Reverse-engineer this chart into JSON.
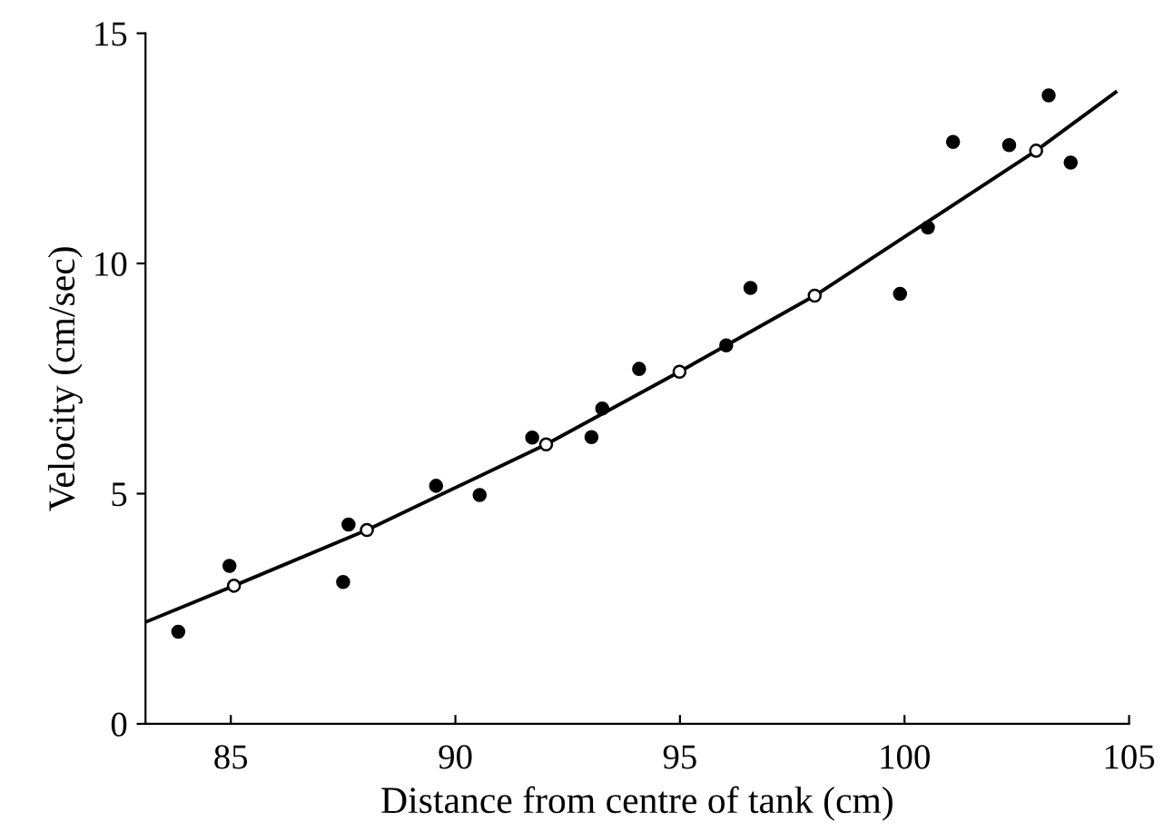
{
  "chart_data": {
    "type": "scatter",
    "xlabel": "Distance from centre of tank (cm)",
    "ylabel": "Velocity (cm/sec)",
    "xlim": [
      83.1,
      105
    ],
    "ylim": [
      0,
      15
    ],
    "xticks": [
      85,
      90,
      95,
      100,
      105
    ],
    "yticks": [
      0,
      5,
      10,
      15
    ],
    "grid": false,
    "legend": false,
    "series": [
      {
        "type": "line",
        "color": "#000000",
        "marker": "none",
        "line_style": "solid",
        "x": [
          83.1,
          85.07,
          88.03,
          92.02,
          94.99,
          98.0,
          102.93,
          104.7
        ],
        "values": [
          2.21,
          3.0,
          4.21,
          6.07,
          7.65,
          9.3,
          12.45,
          13.72
        ]
      },
      {
        "color": "#000000",
        "marker": "circle",
        "x": [
          83.83,
          84.97,
          87.5,
          87.62,
          89.57,
          90.54,
          91.71,
          93.03,
          93.27,
          94.09,
          96.03,
          96.57,
          99.9,
          100.52,
          101.08,
          102.33,
          103.21,
          103.7
        ],
        "values": [
          2.0,
          3.43,
          3.08,
          4.33,
          5.17,
          4.97,
          6.22,
          6.23,
          6.85,
          7.71,
          8.22,
          9.47,
          9.34,
          10.78,
          12.64,
          12.57,
          13.65,
          12.19
        ]
      },
      {
        "color": "#ffffff",
        "marker": "circle",
        "x": [
          85.07,
          88.03,
          92.02,
          94.99,
          98.0,
          102.93
        ],
        "values": [
          3.0,
          4.21,
          6.07,
          7.65,
          9.3,
          12.45
        ]
      }
    ]
  }
}
